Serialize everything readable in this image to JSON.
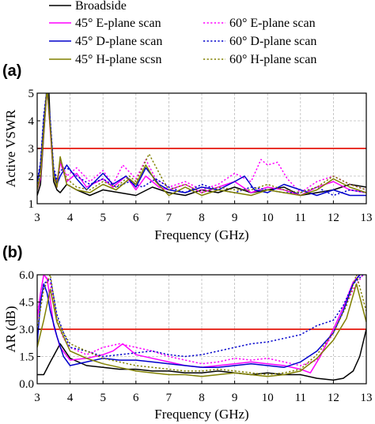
{
  "legend": [
    {
      "name": "Broadside",
      "color": "#000000",
      "dash": "solid"
    },
    {
      "name": "45° E-plane scan",
      "color": "#ff00ff",
      "dash": "solid"
    },
    {
      "name": "60° E-plane scan",
      "color": "#ff00ff",
      "dash": "dotted"
    },
    {
      "name": "45° D-plane scan",
      "color": "#0000cc",
      "dash": "solid"
    },
    {
      "name": "60° D-plane scan",
      "color": "#0000cc",
      "dash": "dotted"
    },
    {
      "name": "45° H-plane scsn",
      "color": "#808000",
      "dash": "solid"
    },
    {
      "name": "60° H-plane scan",
      "color": "#808000",
      "dash": "dotted"
    }
  ],
  "chart_data": [
    {
      "type": "line",
      "panel_label": "(a)",
      "xlabel": "Frequency (GHz)",
      "ylabel": "Active VSWR",
      "xlim": [
        3,
        13
      ],
      "ylim": [
        1,
        5
      ],
      "xticks": [
        "3",
        "4",
        "5",
        "6",
        "7",
        "8",
        "9",
        "10",
        "11",
        "12",
        "13"
      ],
      "yticks": [
        "1",
        "2",
        "3",
        "4",
        "5"
      ],
      "grid": true,
      "reference_line": {
        "y": 3,
        "color": "#e8332a"
      },
      "series": [
        {
          "name": "Broadside",
          "color": "#000000",
          "dash": "solid",
          "x": [
            3,
            3.1,
            3.2,
            3.3,
            3.35,
            3.4,
            3.5,
            3.6,
            3.7,
            3.9,
            4.2,
            4.6,
            5,
            5.5,
            6,
            6.5,
            7,
            7.5,
            8,
            8.5,
            9,
            9.5,
            10,
            10.5,
            11,
            11.5,
            12,
            12.5,
            13
          ],
          "y": [
            1.3,
            1.7,
            3.5,
            5.2,
            5.2,
            3.8,
            1.8,
            1.5,
            1.4,
            1.7,
            1.5,
            1.3,
            1.5,
            1.4,
            1.3,
            1.6,
            1.4,
            1.3,
            1.5,
            1.4,
            1.6,
            1.4,
            1.5,
            1.6,
            1.3,
            1.4,
            1.5,
            1.7,
            1.6
          ]
        },
        {
          "name": "45° E-plane scan",
          "color": "#ff00ff",
          "dash": "solid",
          "x": [
            3,
            3.1,
            3.2,
            3.3,
            3.4,
            3.5,
            3.6,
            3.7,
            3.9,
            4.2,
            4.5,
            5,
            5.3,
            5.7,
            6,
            6.3,
            6.7,
            7,
            7.5,
            8,
            8.5,
            9,
            9.5,
            10,
            10.5,
            11,
            11.5,
            12,
            12.5,
            13
          ],
          "y": [
            1.5,
            1.9,
            3.6,
            5.2,
            3.6,
            2.0,
            1.6,
            2.5,
            1.8,
            2.1,
            1.6,
            1.9,
            1.6,
            2.0,
            1.5,
            2.0,
            1.6,
            1.5,
            1.7,
            1.4,
            1.6,
            1.8,
            1.4,
            1.6,
            1.5,
            1.3,
            1.6,
            1.8,
            1.5,
            1.4
          ]
        },
        {
          "name": "60° E-plane scan",
          "color": "#ff00ff",
          "dash": "dotted",
          "x": [
            3,
            3.1,
            3.2,
            3.3,
            3.4,
            3.5,
            3.6,
            3.7,
            3.9,
            4.2,
            4.6,
            5,
            5.3,
            5.6,
            6,
            6.3,
            6.6,
            7,
            7.5,
            8,
            8.5,
            9,
            9.5,
            9.8,
            10,
            10.3,
            10.6,
            11,
            11.5,
            12,
            12.5,
            13
          ],
          "y": [
            1.6,
            2.1,
            3.9,
            5.2,
            3.8,
            2.1,
            1.8,
            2.6,
            2.0,
            2.3,
            1.8,
            2.2,
            1.7,
            2.4,
            1.9,
            2.6,
            1.9,
            1.6,
            1.8,
            1.5,
            1.7,
            2.1,
            1.8,
            2.6,
            2.4,
            2.5,
            1.9,
            1.4,
            1.8,
            2.0,
            1.7,
            1.5
          ]
        },
        {
          "name": "45° D-plane scan",
          "color": "#0000cc",
          "dash": "solid",
          "x": [
            3,
            3.1,
            3.2,
            3.3,
            3.4,
            3.5,
            3.6,
            3.7,
            3.9,
            4.2,
            4.5,
            5,
            5.3,
            5.7,
            6,
            6.3,
            6.7,
            7,
            7.5,
            8,
            8.5,
            9,
            9.3,
            9.6,
            10,
            10.5,
            11,
            11.5,
            12,
            12.5,
            13
          ],
          "y": [
            1.7,
            2.4,
            4.0,
            5.2,
            3.9,
            2.2,
            1.7,
            2.0,
            2.4,
            1.9,
            1.5,
            2.1,
            1.7,
            2.0,
            1.6,
            2.3,
            1.7,
            1.5,
            1.4,
            1.6,
            1.5,
            1.8,
            2.0,
            1.5,
            1.4,
            1.7,
            1.5,
            1.3,
            1.5,
            1.3,
            1.3
          ]
        },
        {
          "name": "60° D-plane scan",
          "color": "#0000cc",
          "dash": "dotted",
          "x": [
            3,
            3.1,
            3.2,
            3.3,
            3.4,
            3.5,
            3.6,
            3.7,
            3.9,
            4.2,
            4.6,
            5,
            5.4,
            5.8,
            6.2,
            6.6,
            7,
            7.5,
            8,
            8.5,
            9,
            9.5,
            10,
            10.5,
            11,
            11.5,
            12,
            12.5,
            13
          ],
          "y": [
            1.8,
            2.5,
            4.2,
            5.2,
            4.0,
            2.3,
            1.9,
            2.2,
            2.3,
            2.0,
            1.7,
            1.9,
            1.6,
            1.8,
            1.6,
            1.9,
            1.6,
            1.4,
            1.7,
            1.5,
            1.4,
            1.6,
            1.5,
            1.4,
            1.4,
            1.6,
            1.3,
            1.5,
            1.4
          ]
        },
        {
          "name": "45° H-plane scsn",
          "color": "#808000",
          "dash": "solid",
          "x": [
            3,
            3.1,
            3.2,
            3.3,
            3.4,
            3.5,
            3.6,
            3.7,
            3.9,
            4.2,
            4.6,
            5,
            5.4,
            5.8,
            6,
            6.3,
            6.6,
            7,
            7.5,
            8,
            8.5,
            9,
            9.5,
            10,
            10.5,
            11,
            11.5,
            12,
            12.5,
            13
          ],
          "y": [
            1.5,
            2.0,
            3.6,
            5.2,
            3.7,
            2.0,
            1.6,
            2.7,
            1.7,
            1.5,
            1.4,
            1.7,
            1.5,
            1.9,
            1.7,
            2.4,
            1.8,
            1.3,
            1.6,
            1.3,
            1.5,
            1.4,
            1.3,
            1.5,
            1.4,
            1.3,
            1.5,
            1.9,
            1.6,
            1.4
          ]
        },
        {
          "name": "60° H-plane scan",
          "color": "#808000",
          "dash": "dotted",
          "x": [
            3,
            3.1,
            3.2,
            3.3,
            3.4,
            3.5,
            3.6,
            3.7,
            3.9,
            4.2,
            4.6,
            5,
            5.4,
            5.8,
            6,
            6.4,
            6.8,
            7,
            7.5,
            8,
            8.5,
            9,
            9.5,
            10,
            10.5,
            11,
            11.5,
            12,
            12.5,
            13
          ],
          "y": [
            1.6,
            2.2,
            3.8,
            5.2,
            3.8,
            2.1,
            1.7,
            2.6,
            1.9,
            1.6,
            1.5,
            1.8,
            1.6,
            2.0,
            1.8,
            2.8,
            1.9,
            1.5,
            1.7,
            1.4,
            1.6,
            1.5,
            1.5,
            1.7,
            1.5,
            1.4,
            1.6,
            2.0,
            1.7,
            1.5
          ]
        }
      ]
    },
    {
      "type": "line",
      "panel_label": "(b)",
      "xlabel": "Frequency (GHz)",
      "ylabel": "AR (dB)",
      "xlim": [
        3,
        13
      ],
      "ylim": [
        0,
        6
      ],
      "xticks": [
        "3",
        "4",
        "5",
        "6",
        "7",
        "8",
        "9",
        "10",
        "11",
        "12",
        "13"
      ],
      "yticks": [
        "0.0",
        "1.5",
        "3.0",
        "4.5",
        "6.0"
      ],
      "grid": true,
      "reference_line": {
        "y": 3,
        "color": "#e8332a"
      },
      "series": [
        {
          "name": "Broadside",
          "color": "#000000",
          "dash": "solid",
          "x": [
            3,
            3.2,
            3.4,
            3.7,
            4,
            4.5,
            5,
            5.5,
            6,
            6.5,
            7,
            7.5,
            8,
            8.5,
            9,
            9.5,
            10,
            10.5,
            11,
            11.5,
            12,
            12.3,
            12.6,
            12.8,
            13
          ],
          "y": [
            0.5,
            0.5,
            1.2,
            2.2,
            1.4,
            1.0,
            0.9,
            0.8,
            0.8,
            0.7,
            0.7,
            0.6,
            0.6,
            0.7,
            0.6,
            0.5,
            0.6,
            0.5,
            0.5,
            0.3,
            0.2,
            0.3,
            0.7,
            1.5,
            3.0
          ]
        },
        {
          "name": "45° E-plane scan",
          "color": "#ff00ff",
          "dash": "solid",
          "x": [
            3,
            3.1,
            3.2,
            3.3,
            3.4,
            3.5,
            3.7,
            4,
            4.5,
            5,
            5.3,
            5.6,
            6,
            6.5,
            7,
            7.5,
            8,
            8.5,
            9,
            9.5,
            10,
            10.5,
            11,
            11.3,
            11.6,
            12,
            12.3,
            12.6,
            12.8
          ],
          "y": [
            3.5,
            5.0,
            6.0,
            5.8,
            4.6,
            3.2,
            2.0,
            1.3,
            1.4,
            1.6,
            1.8,
            2.2,
            1.6,
            1.4,
            1.2,
            1.0,
            0.9,
            1.0,
            1.1,
            1.2,
            1.1,
            1.0,
            0.8,
            0.6,
            1.5,
            3.0,
            4.2,
            5.6,
            6.0
          ]
        },
        {
          "name": "60° E-plane scan",
          "color": "#ff00ff",
          "dash": "dotted",
          "x": [
            3,
            3.2,
            3.4,
            3.6,
            3.8,
            4,
            4.5,
            5,
            5.5,
            6,
            6.5,
            7,
            7.5,
            8,
            8.5,
            9,
            9.5,
            10,
            10.5,
            11,
            11.5,
            12,
            12.3,
            12.6,
            12.9
          ],
          "y": [
            3.8,
            6.0,
            5.5,
            3.4,
            2.5,
            2.0,
            1.6,
            2.0,
            2.2,
            2.0,
            1.8,
            1.5,
            1.3,
            1.1,
            1.2,
            1.4,
            1.3,
            1.4,
            1.2,
            1.0,
            1.3,
            2.8,
            4.0,
            5.2,
            6.0
          ]
        },
        {
          "name": "45° D-plane scan",
          "color": "#0000cc",
          "dash": "solid",
          "x": [
            3,
            3.1,
            3.2,
            3.3,
            3.4,
            3.6,
            3.8,
            4,
            4.5,
            5,
            5.5,
            6,
            6.5,
            7,
            7.5,
            8,
            8.5,
            9,
            9.5,
            10,
            10.5,
            11,
            11.5,
            12,
            12.3,
            12.6,
            12.8
          ],
          "y": [
            2.2,
            4.5,
            5.5,
            5.0,
            4.0,
            2.6,
            1.5,
            1.0,
            1.2,
            1.4,
            1.3,
            1.3,
            1.2,
            1.1,
            1.0,
            0.9,
            0.9,
            1.0,
            1.1,
            1.0,
            0.9,
            1.2,
            1.8,
            2.8,
            4.0,
            5.5,
            6.0
          ]
        },
        {
          "name": "60° D-plane scan",
          "color": "#0000cc",
          "dash": "dotted",
          "x": [
            3,
            3.2,
            3.4,
            3.6,
            3.8,
            4,
            4.5,
            5,
            5.5,
            6,
            6.5,
            7,
            7.5,
            8,
            8.5,
            9,
            9.5,
            10,
            10.5,
            11,
            11.5,
            12,
            12.3,
            12.6,
            12.9
          ],
          "y": [
            2.8,
            5.5,
            5.8,
            3.8,
            2.8,
            2.0,
            1.8,
            1.5,
            1.6,
            1.7,
            1.8,
            1.6,
            1.5,
            1.6,
            1.8,
            2.0,
            2.2,
            2.3,
            2.5,
            2.7,
            3.2,
            3.5,
            4.3,
            5.5,
            6.0
          ]
        },
        {
          "name": "45° H-plane scsn",
          "color": "#808000",
          "dash": "solid",
          "x": [
            3,
            3.2,
            3.4,
            3.6,
            3.8,
            4,
            4.5,
            5,
            5.5,
            6,
            6.5,
            7,
            7.5,
            8,
            8.5,
            9,
            9.5,
            10,
            10.5,
            11,
            11.5,
            12,
            12.4,
            12.7,
            13
          ],
          "y": [
            2.0,
            3.5,
            5.2,
            3.4,
            2.6,
            1.8,
            1.4,
            1.1,
            0.9,
            0.7,
            0.6,
            0.5,
            0.5,
            0.4,
            0.5,
            0.6,
            0.5,
            0.4,
            0.5,
            0.7,
            1.4,
            2.4,
            3.6,
            5.5,
            3.4
          ]
        },
        {
          "name": "60° H-plane scan",
          "color": "#808000",
          "dash": "dotted",
          "x": [
            3,
            3.2,
            3.4,
            3.6,
            3.8,
            4,
            4.5,
            5,
            5.5,
            6,
            6.5,
            7,
            7.5,
            8,
            8.5,
            9,
            9.5,
            10,
            10.5,
            11,
            11.5,
            12,
            12.4,
            12.7,
            13
          ],
          "y": [
            3.0,
            5.2,
            6.0,
            3.6,
            2.8,
            2.2,
            1.8,
            1.4,
            1.2,
            1.0,
            0.9,
            0.8,
            0.7,
            0.7,
            0.8,
            0.7,
            0.6,
            0.5,
            0.6,
            0.8,
            1.6,
            2.8,
            4.3,
            6.0,
            4.0
          ]
        }
      ]
    }
  ]
}
